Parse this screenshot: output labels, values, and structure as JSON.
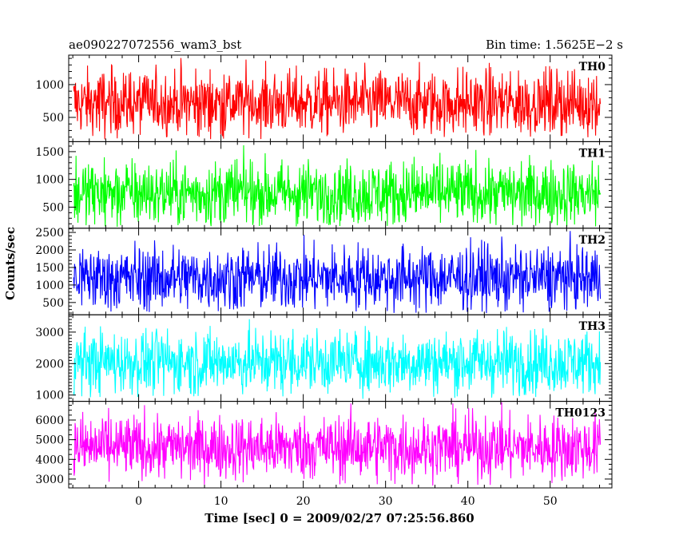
{
  "header": {
    "file_label": "ae090227072556_wam3_bst",
    "bin_time_label": "Bin time: 1.5625E−2 s"
  },
  "colors": {
    "TH0": "#ff0000",
    "TH1": "#00ff00",
    "TH2": "#0000ff",
    "TH3": "#00ffff",
    "TH0123": "#ff00ff"
  },
  "chart_data": {
    "type": "line",
    "title": "ae090227072556_wam3_bst",
    "subtitle": "Bin time: 1.5625E−2 s",
    "xlabel": "Time [sec] 0 = 2009/02/27 07:25:56.860",
    "ylabel": "Counts/sec",
    "xlim": [
      -8.5,
      57.5
    ],
    "x_range_data": [
      -7.9,
      56.1
    ],
    "x_ticks": [
      0,
      10,
      20,
      30,
      40,
      50
    ],
    "bin_time_s": 0.015625,
    "grid": false,
    "legend": "panel labels top-right",
    "panels": [
      {
        "name": "TH0",
        "color": "#ff0000",
        "ylim": [
          130,
          1450
        ],
        "y_ticks": [
          500,
          1000
        ],
        "mean": 720,
        "min": 160,
        "max": 1450
      },
      {
        "name": "TH1",
        "color": "#00ff00",
        "ylim": [
          120,
          1680
        ],
        "y_ticks": [
          500,
          1000,
          1500
        ],
        "mean": 750,
        "min": 140,
        "max": 1680
      },
      {
        "name": "TH2",
        "color": "#0000ff",
        "ylim": [
          150,
          2620
        ],
        "y_ticks": [
          500,
          1000,
          1500,
          2000,
          2500
        ],
        "mean": 1200,
        "min": 180,
        "max": 2600
      },
      {
        "name": "TH3",
        "color": "#00ffff",
        "ylim": [
          800,
          3550
        ],
        "y_ticks": [
          1000,
          2000,
          3000
        ],
        "mean": 2050,
        "min": 880,
        "max": 3500
      },
      {
        "name": "TH0123",
        "color": "#ff00ff",
        "ylim": [
          2550,
          6950
        ],
        "y_ticks": [
          3000,
          4000,
          5000,
          6000
        ],
        "mean": 4600,
        "min": 2650,
        "max": 6900
      }
    ]
  }
}
